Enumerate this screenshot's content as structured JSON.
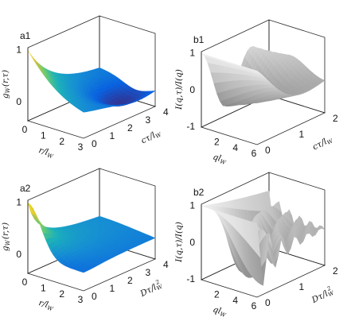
{
  "chart_data": [
    {
      "panel": "a1",
      "type": "surface",
      "zticks": [
        "0",
        "1"
      ],
      "xticks": [
        "0",
        "1",
        "2",
        "3"
      ],
      "yticks": [
        "4",
        "3",
        "2",
        "1",
        "0"
      ],
      "zlabel": "g_W(r,τ)",
      "xlabel": "r/l_W",
      "ylabel": "cτ/l_W",
      "xlim": [
        0,
        3
      ],
      "ylim": [
        0,
        4
      ],
      "zlim": [
        0,
        1
      ],
      "colormap": "parula",
      "shape": "peak of height 1 at r=0, τ=0 that decays with r and τ; negative dip near r≈2, τ≈3 (down to about -0.3)"
    },
    {
      "panel": "b1",
      "type": "surface",
      "zticks": [
        "-1",
        "0",
        "1"
      ],
      "xticks": [
        "2",
        "4",
        "6"
      ],
      "yticks": [
        "2",
        "1",
        "0"
      ],
      "zlabel": "I(q,τ)/I(q)",
      "xlabel": "ql_W",
      "ylabel": "cτ/l_W",
      "xlim": [
        0,
        6
      ],
      "ylim": [
        0,
        2
      ],
      "zlim": [
        -1,
        1
      ],
      "colormap": "gray",
      "shape": "equals 1 at τ=0, oscillates in τ with a deep minimum of about -1 near q≈2"
    },
    {
      "panel": "a2",
      "type": "surface",
      "zticks": [
        "0",
        "1"
      ],
      "xticks": [
        "0",
        "1",
        "2",
        "3"
      ],
      "yticks": [
        "4",
        "3",
        "2",
        "1",
        "0"
      ],
      "zlabel": "g_W(r,τ)",
      "xlabel": "r/l_W",
      "ylabel": "Dτ/l_W^2",
      "xlim": [
        0,
        3
      ],
      "ylim": [
        0,
        4
      ],
      "zlim": [
        0,
        1
      ],
      "colormap": "parula",
      "shape": "peak of height 1 at r=0, τ=0 that decays smoothly, stays non-negative"
    },
    {
      "panel": "b2",
      "type": "surface",
      "zticks": [
        "-1",
        "0",
        "1"
      ],
      "xticks": [
        "2",
        "4",
        "6"
      ],
      "yticks": [
        "2",
        "1",
        "0"
      ],
      "zlabel": "I(q,τ)/I(q)",
      "xlabel": "ql_W",
      "ylabel": "Dτ/l_W^2",
      "xlim": [
        0,
        6
      ],
      "ylim": [
        0,
        2
      ],
      "zlim": [
        -1,
        1
      ],
      "colormap": "gray",
      "shape": "equals 1 at τ=0, decaying oscillation with minima near -1 at small q"
    }
  ]
}
